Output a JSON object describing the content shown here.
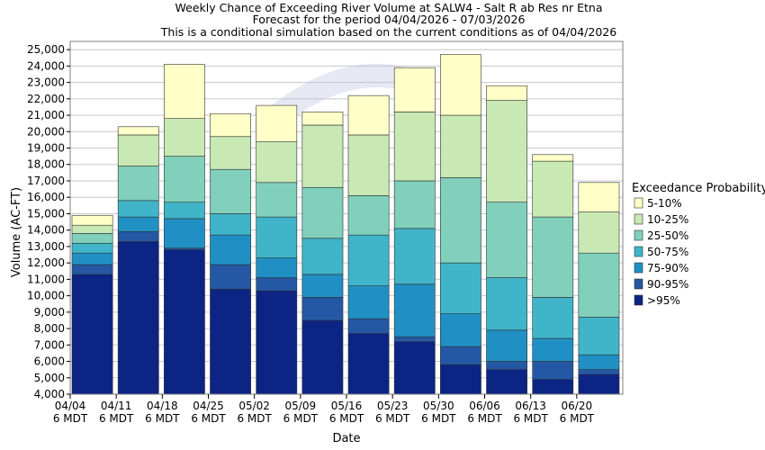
{
  "chart_data": {
    "type": "bar",
    "title_lines": [
      "Weekly Chance of Exceeding River Volume at SALW4 - Salt R ab Res nr Etna",
      "Forecast for the period 04/04/2026 - 07/03/2026",
      "This is a conditional simulation based on the current conditions as of 04/04/2026"
    ],
    "xlabel": "Date",
    "ylabel": "Volume (AC-FT)",
    "ylim": [
      4000,
      25500
    ],
    "y_ticks": [
      "4,000",
      "5,000",
      "6,000",
      "7,000",
      "8,000",
      "9,000",
      "10,000",
      "11,000",
      "12,000",
      "13,000",
      "14,000",
      "15,000",
      "16,000",
      "17,000",
      "18,000",
      "19,000",
      "20,000",
      "21,000",
      "22,000",
      "23,000",
      "24,000",
      "25,000"
    ],
    "x_tick_dates": [
      "04/04",
      "04/11",
      "04/18",
      "04/25",
      "05/02",
      "05/09",
      "05/16",
      "05/23",
      "05/30",
      "06/06",
      "06/13",
      "06/20"
    ],
    "x_tick_sub": "6 MDT",
    "categories": [
      "04/04",
      "04/11",
      "04/18",
      "04/25",
      "05/02",
      "05/09",
      "05/16",
      "05/23",
      "05/30",
      "06/06",
      "06/13",
      "06/20"
    ],
    "grid": true,
    "legend": {
      "title": "Exceedance Probability",
      "placement": "right",
      "entries": [
        {
          "label": "5-10%",
          "color": "#ffffc8"
        },
        {
          "label": "10-25%",
          "color": "#c8e8b4"
        },
        {
          "label": "25-50%",
          "color": "#80d0bc"
        },
        {
          "label": "50-75%",
          "color": "#40b4c8"
        },
        {
          "label": "75-90%",
          "color": "#2090c4"
        },
        {
          "label": "90-95%",
          "color": "#2458a4"
        },
        {
          "label": ">95%",
          "color": "#0c2484"
        }
      ]
    },
    "series": [
      {
        "name": ">95%",
        "values": [
          11300,
          13300,
          12800,
          10400,
          10300,
          8500,
          7700,
          7200,
          5800,
          5500,
          4900,
          5200
        ]
      },
      {
        "name": "90-95%",
        "values": [
          11900,
          13900,
          12900,
          11900,
          11100,
          9900,
          8600,
          7500,
          6900,
          6000,
          6000,
          5500
        ]
      },
      {
        "name": "75-90%",
        "values": [
          12600,
          14800,
          14700,
          13700,
          12300,
          11300,
          10600,
          10700,
          8900,
          7900,
          7400,
          6400
        ]
      },
      {
        "name": "50-75%",
        "values": [
          13200,
          15800,
          15700,
          15000,
          14800,
          13500,
          13700,
          14100,
          12000,
          11100,
          9900,
          8700
        ]
      },
      {
        "name": "25-50%",
        "values": [
          13800,
          17900,
          18500,
          17700,
          16900,
          16600,
          16100,
          17000,
          17200,
          15700,
          14800,
          12600
        ]
      },
      {
        "name": "10-25%",
        "values": [
          14300,
          19800,
          20800,
          19700,
          19400,
          20400,
          19800,
          21200,
          21000,
          21900,
          18200,
          15100
        ]
      },
      {
        "name": "5-10%",
        "values": [
          14900,
          20300,
          24100,
          21100,
          21600,
          21200,
          22200,
          23900,
          24700,
          22800,
          18600,
          16900
        ]
      }
    ]
  }
}
